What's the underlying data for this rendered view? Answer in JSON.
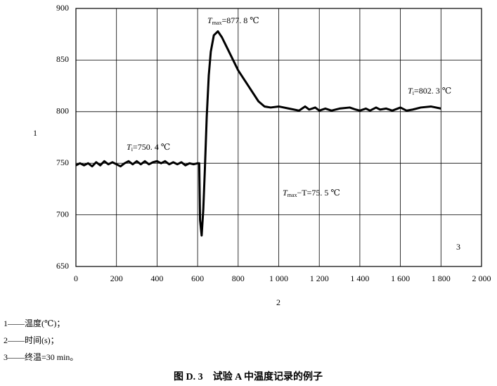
{
  "chart_data": {
    "type": "line",
    "x": [
      0,
      20,
      40,
      60,
      80,
      100,
      120,
      140,
      160,
      180,
      200,
      220,
      240,
      260,
      280,
      300,
      320,
      340,
      360,
      380,
      400,
      420,
      440,
      460,
      480,
      500,
      520,
      540,
      560,
      580,
      600,
      608,
      612,
      620,
      628,
      636,
      645,
      655,
      665,
      680,
      700,
      720,
      750,
      800,
      850,
      900,
      930,
      960,
      1000,
      1050,
      1100,
      1130,
      1150,
      1180,
      1200,
      1230,
      1260,
      1300,
      1350,
      1380,
      1400,
      1430,
      1450,
      1480,
      1500,
      1530,
      1560,
      1600,
      1630,
      1660,
      1700,
      1750,
      1800
    ],
    "series": [
      {
        "name": "温度",
        "color": "#000000",
        "values": [
          748,
          750,
          748,
          750,
          747,
          751,
          748,
          752,
          749,
          751,
          749,
          747,
          750,
          752,
          749,
          752,
          749,
          752,
          749,
          751,
          752,
          750,
          752,
          749,
          751,
          749,
          751,
          748,
          750,
          749,
          750,
          750,
          695,
          680,
          705,
          745,
          795,
          835,
          858,
          874,
          877.8,
          872,
          860,
          840,
          825,
          810,
          805,
          804,
          805,
          803,
          801,
          805,
          802,
          804,
          801,
          803,
          801,
          803,
          804,
          802,
          801,
          803,
          801,
          804,
          802,
          803,
          801,
          804,
          801,
          802,
          804,
          805,
          803
        ]
      }
    ],
    "xlim": [
      0,
      2000
    ],
    "xticks": [
      0,
      200,
      400,
      600,
      800,
      {
        "value": 1000,
        "label": "1 000"
      },
      {
        "value": 1200,
        "label": "1 200"
      },
      {
        "value": 1400,
        "label": "1 400"
      },
      {
        "value": 1600,
        "label": "1 600"
      },
      {
        "value": 1800,
        "label": "1 800"
      },
      {
        "value": 2000,
        "label": "2 000"
      }
    ],
    "ylim": [
      650,
      900
    ],
    "yticks": [
      650,
      700,
      750,
      800,
      850,
      900
    ],
    "grid": true,
    "xlabel": "2",
    "ylabel": "1",
    "corner_label": "3",
    "annotations": [
      {
        "main": "T",
        "sub": "max",
        "rest": "=877. 8 ℃"
      },
      {
        "main": "T",
        "sub": "i",
        "rest": "=750. 4 ℃"
      },
      {
        "main": "T",
        "sub": "i",
        "rest": "=802. 3 ℃"
      },
      {
        "main": "T",
        "sub": "max",
        "rest": "−T=75. 5 ℃"
      }
    ],
    "notes": [
      "1——温度(℃)；",
      "2——时间(s)；",
      "3——终温=30 min。"
    ],
    "caption": "图 D. 3　试验 A 中温度记录的例子"
  }
}
